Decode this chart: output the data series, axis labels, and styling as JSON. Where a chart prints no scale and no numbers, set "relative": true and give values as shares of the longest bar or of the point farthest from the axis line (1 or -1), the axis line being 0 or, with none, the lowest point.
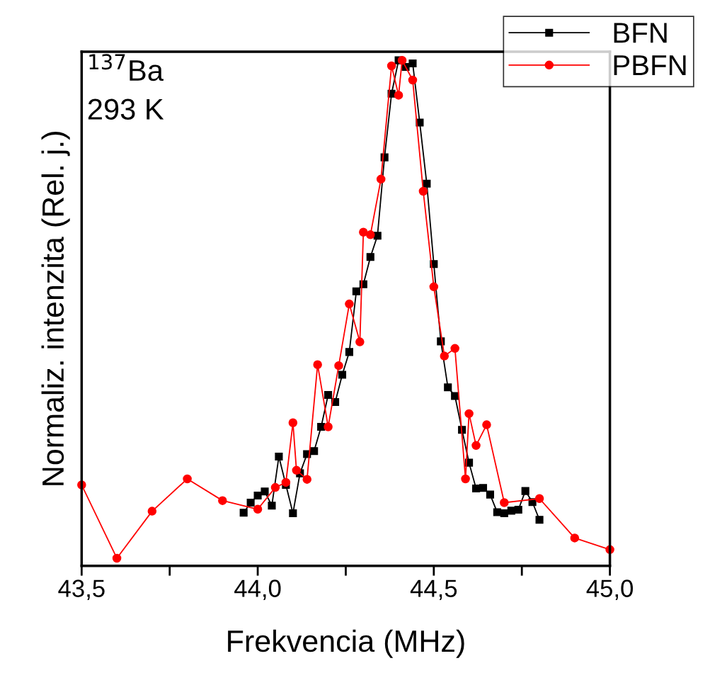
{
  "chart_data": {
    "type": "line",
    "relative": true,
    "xlabel": "Frekvencia (MHz)",
    "ylabel": "Normaliz. intenzita (Rel. j.)",
    "xlim": [
      43.5,
      45.0
    ],
    "xticks": [
      {
        "value": 43.5,
        "label": "43,5"
      },
      {
        "value": 43.75,
        "label": null
      },
      {
        "value": 44.0,
        "label": "44,0"
      },
      {
        "value": 44.25,
        "label": null
      },
      {
        "value": 44.5,
        "label": "44,5"
      },
      {
        "value": 44.75,
        "label": null
      },
      {
        "value": 45.0,
        "label": "45,0"
      }
    ],
    "tick_labels": "x",
    "legend": "top right",
    "grid": false,
    "annotations": [
      "$^{137}$Ba",
      "293 K"
    ],
    "series": [
      {
        "name": "BFN",
        "color": "#000000",
        "marker": "square",
        "x": [
          43.96,
          43.98,
          44.0,
          44.02,
          44.04,
          44.06,
          44.08,
          44.1,
          44.12,
          44.14,
          44.16,
          44.18,
          44.2,
          44.22,
          44.24,
          44.26,
          44.28,
          44.3,
          44.32,
          44.34,
          44.36,
          44.38,
          44.4,
          44.42,
          44.44,
          44.46,
          44.48,
          44.5,
          44.52,
          44.54,
          44.56,
          44.58,
          44.6,
          44.62,
          44.64,
          44.66,
          44.68,
          44.7,
          44.72,
          44.74,
          44.76,
          44.78,
          44.8
        ],
        "values": [
          0.105,
          0.125,
          0.139,
          0.147,
          0.119,
          0.216,
          0.16,
          0.104,
          0.183,
          0.221,
          0.227,
          0.275,
          0.338,
          0.324,
          0.378,
          0.423,
          0.543,
          0.557,
          0.611,
          0.653,
          0.808,
          0.934,
          1.0,
          0.987,
          0.994,
          0.877,
          0.756,
          0.597,
          0.444,
          0.353,
          0.336,
          0.269,
          0.204,
          0.153,
          0.154,
          0.141,
          0.106,
          0.104,
          0.109,
          0.111,
          0.148,
          0.126,
          0.091
        ]
      },
      {
        "name": "PBFN",
        "color": "#ff0000",
        "marker": "circle",
        "x": [
          43.5,
          43.6,
          43.7,
          43.8,
          43.9,
          44.0,
          44.05,
          44.08,
          44.1,
          44.11,
          44.14,
          44.17,
          44.2,
          44.23,
          44.26,
          44.29,
          44.3,
          44.32,
          44.35,
          44.38,
          44.4,
          44.41,
          44.44,
          44.47,
          44.5,
          44.53,
          44.56,
          44.59,
          44.6,
          44.62,
          44.65,
          44.7,
          44.8,
          44.9,
          45.0
        ],
        "values": [
          0.16,
          0.015,
          0.108,
          0.172,
          0.129,
          0.112,
          0.155,
          0.165,
          0.283,
          0.189,
          0.171,
          0.398,
          0.275,
          0.396,
          0.518,
          0.443,
          0.66,
          0.655,
          0.765,
          0.989,
          0.931,
          1.0,
          0.961,
          0.741,
          0.552,
          0.415,
          0.43,
          0.172,
          0.301,
          0.238,
          0.279,
          0.125,
          0.133,
          0.055,
          0.032
        ]
      }
    ]
  }
}
